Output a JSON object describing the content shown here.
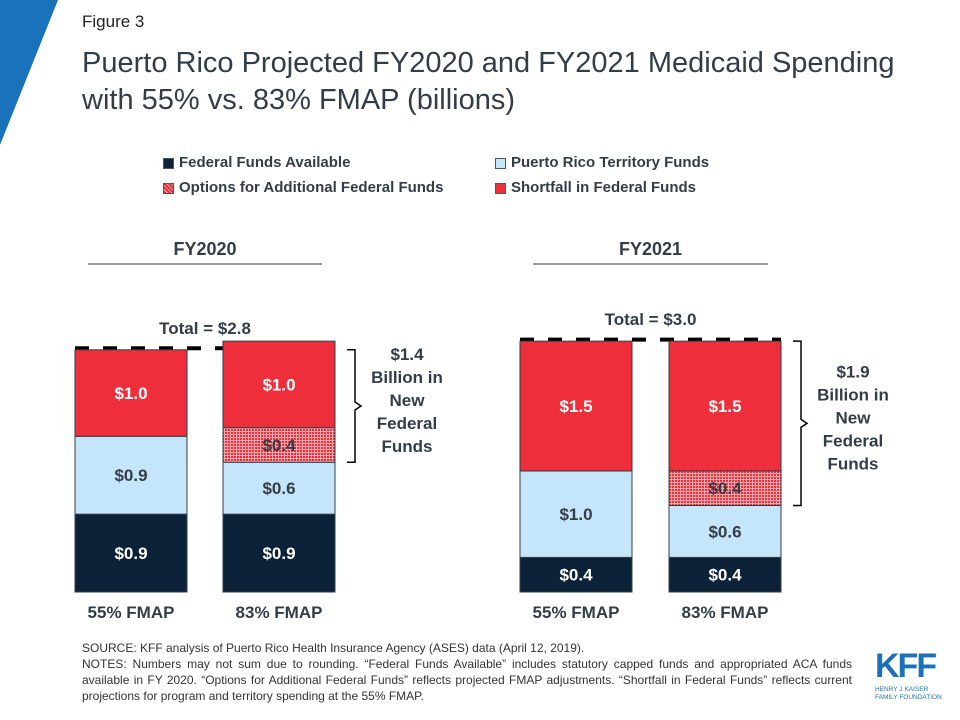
{
  "figure_label": "Figure 3",
  "title": "Puerto Rico Projected FY2020 and FY2021 Medicaid Spending with 55% vs. 83% FMAP (billions)",
  "colors": {
    "federal": "#0b2239",
    "territory": "#c5e5fb",
    "options": "#ee2e3a",
    "shortfall": "#ee2e3a",
    "accent": "#1a73ba"
  },
  "chart_data": {
    "type": "bar",
    "stacked": true,
    "legend": [
      "Federal Funds Available",
      "Puerto Rico Territory Funds",
      "Options for Additional Federal Funds",
      "Shortfall in Federal Funds"
    ],
    "legend_position": "top",
    "groups": [
      {
        "label": "FY2020",
        "total_label": "Total = $2.8",
        "annotation": "$1.4 Billion in New Federal Funds",
        "bars": [
          {
            "label": "55% FMAP",
            "segments": [
              {
                "series": "Federal Funds Available",
                "value": 0.9,
                "label": "$0.9"
              },
              {
                "series": "Puerto Rico Territory Funds",
                "value": 0.9,
                "label": "$0.9"
              },
              {
                "series": "Shortfall in Federal Funds",
                "value": 1.0,
                "label": "$1.0"
              }
            ]
          },
          {
            "label": "83% FMAP",
            "segments": [
              {
                "series": "Federal Funds Available",
                "value": 0.9,
                "label": "$0.9"
              },
              {
                "series": "Puerto Rico Territory Funds",
                "value": 0.6,
                "label": "$0.6"
              },
              {
                "series": "Options for Additional Federal Funds",
                "value": 0.4,
                "label": "$0.4"
              },
              {
                "series": "Shortfall in Federal Funds",
                "value": 1.0,
                "label": "$1.0"
              }
            ]
          }
        ]
      },
      {
        "label": "FY2021",
        "total_label": "Total = $3.0",
        "annotation": "$1.9 Billion in New Federal Funds",
        "bars": [
          {
            "label": "55% FMAP",
            "segments": [
              {
                "series": "Federal Funds Available",
                "value": 0.4,
                "label": "$0.4"
              },
              {
                "series": "Puerto Rico Territory Funds",
                "value": 1.0,
                "label": "$1.0"
              },
              {
                "series": "Shortfall in Federal Funds",
                "value": 1.5,
                "label": "$1.5"
              }
            ]
          },
          {
            "label": "83% FMAP",
            "segments": [
              {
                "series": "Federal Funds Available",
                "value": 0.4,
                "label": "$0.4"
              },
              {
                "series": "Puerto Rico Territory Funds",
                "value": 0.6,
                "label": "$0.6"
              },
              {
                "series": "Options for Additional Federal Funds",
                "value": 0.4,
                "label": "$0.4"
              },
              {
                "series": "Shortfall in Federal Funds",
                "value": 1.5,
                "label": "$1.5"
              }
            ]
          }
        ]
      }
    ]
  },
  "source": "SOURCE: KFF analysis of Puerto Rico Health Insurance Agency (ASES) data (April 12, 2019).",
  "notes": "NOTES: Numbers may not sum due to rounding. “Federal Funds Available” includes statutory capped funds and appropriated ACA funds available in FY 2020. “Options for Additional Federal Funds” reflects projected FMAP adjustments. “Shortfall in Federal Funds” reflects current projections for program and territory spending at the 55% FMAP.",
  "logo": {
    "text": "KFF",
    "sub": "HENRY J KAISER FAMILY FOUNDATION"
  }
}
